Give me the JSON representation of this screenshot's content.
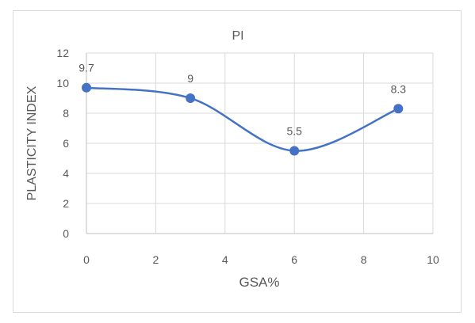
{
  "chart_data": {
    "type": "scatter",
    "title": "PI",
    "xlabel": "GSA%",
    "ylabel": "PLASTICITY INDEX",
    "xlim": [
      0,
      10
    ],
    "ylim": [
      0,
      12
    ],
    "x_ticks": [
      0,
      2,
      4,
      6,
      8,
      10
    ],
    "y_ticks": [
      0,
      2,
      4,
      6,
      8,
      10,
      12
    ],
    "x_tick_labels": [
      "0",
      "2",
      "4",
      "6",
      "8",
      "10"
    ],
    "y_tick_labels": [
      "0",
      "2",
      "4",
      "6",
      "8",
      "10",
      "12"
    ],
    "smooth_line": true,
    "grid": "vertical and horizontal",
    "legend": "none",
    "series_color": "#4472c4",
    "series": [
      {
        "x": [
          0,
          3,
          6,
          9
        ],
        "y": [
          9.7,
          9,
          5.5,
          8.3
        ],
        "labels": [
          "9.7",
          "9",
          "5.5",
          "8.3"
        ]
      }
    ]
  }
}
